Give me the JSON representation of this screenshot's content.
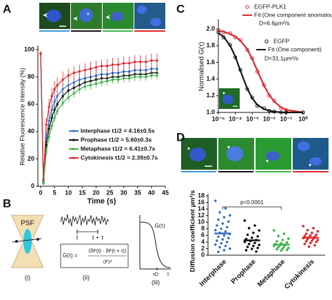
{
  "chart_data": [
    {
      "type": "line",
      "label": "A",
      "xlabel": "Time (s)",
      "ylabel": "Relative Fluorescence Intensity (%)",
      "x": [
        0,
        1,
        2,
        3,
        4,
        5,
        6,
        8,
        10,
        12,
        14,
        16,
        18,
        20,
        22,
        24,
        26,
        28,
        30,
        32,
        34,
        36,
        38,
        40,
        42
      ],
      "xlim": [
        -1,
        45
      ],
      "xticks": [
        0,
        5,
        10,
        15,
        20,
        25,
        30,
        35,
        40,
        45
      ],
      "ylim": [
        0,
        102
      ],
      "yticks": [
        0,
        20,
        40,
        60,
        80,
        100
      ],
      "legend": "lower right",
      "series": [
        {
          "name": "Interphase   t1/2 = 4.16±0.5s",
          "color": "#3a6fc4",
          "values": [
            97,
            4,
            35,
            48,
            56,
            62,
            66,
            71,
            74,
            76,
            78,
            79,
            80,
            81,
            82,
            82,
            83,
            83,
            84,
            84,
            85,
            85,
            85,
            86,
            86
          ],
          "errors": [
            2,
            1,
            4,
            4,
            4,
            4,
            4,
            4,
            4,
            4,
            4,
            4,
            4,
            4,
            4,
            4,
            4,
            4,
            4,
            4,
            4,
            4,
            4,
            4,
            4
          ]
        },
        {
          "name": "Prophase   t1/2 = 5.60±0.3s",
          "color": "#111111",
          "values": [
            97,
            3,
            30,
            42,
            50,
            56,
            60,
            66,
            70,
            72,
            74,
            76,
            77,
            78,
            79,
            79,
            80,
            80,
            81,
            81,
            82,
            82,
            82,
            83,
            83
          ],
          "errors": [
            2,
            1,
            3,
            3,
            3,
            3,
            3,
            3,
            3,
            3,
            3,
            3,
            3,
            3,
            3,
            3,
            3,
            3,
            3,
            3,
            3,
            3,
            3,
            3,
            3
          ]
        },
        {
          "name": "Metaphase  t1/2 = 6.41±0.7s",
          "color": "#3cb34a",
          "values": [
            97,
            2,
            25,
            36,
            44,
            50,
            55,
            61,
            65,
            68,
            71,
            73,
            74,
            75,
            76,
            77,
            78,
            78,
            79,
            79,
            80,
            80,
            80,
            81,
            81
          ],
          "errors": [
            2,
            1,
            3,
            3,
            3,
            3,
            3,
            3,
            3,
            3,
            3,
            3,
            3,
            3,
            3,
            3,
            3,
            3,
            3,
            3,
            3,
            3,
            3,
            3,
            3
          ]
        },
        {
          "name": "Cytokinesis t1/2 = 2.39±0.7s",
          "color": "#e0242b",
          "values": [
            97,
            5,
            45,
            58,
            66,
            71,
            74,
            78,
            81,
            83,
            84,
            85,
            86,
            87,
            88,
            88,
            89,
            89,
            90,
            90,
            91,
            91,
            91,
            92,
            92
          ],
          "errors": [
            2,
            1,
            5,
            6,
            6,
            6,
            6,
            6,
            5,
            5,
            5,
            5,
            5,
            5,
            5,
            5,
            5,
            5,
            5,
            5,
            5,
            5,
            5,
            5,
            5
          ]
        }
      ]
    },
    {
      "type": "line",
      "label": "C",
      "ylabel": "Normalised G(τ)",
      "xscale": "log",
      "x": [
        1e-05,
        2e-05,
        5e-05,
        0.0001,
        0.0002,
        0.0005,
        0.001,
        0.002,
        0.005,
        0.01,
        0.02,
        0.05,
        0.1,
        1
      ],
      "xlim": [
        1e-05,
        1
      ],
      "xticks": [
        {
          "value": 1e-05,
          "label": "10⁻⁵"
        },
        {
          "value": 0.0001,
          "label": "10⁻⁴"
        },
        {
          "value": 0.001,
          "label": "10⁻³"
        },
        {
          "value": 0.01,
          "label": "10⁻²"
        },
        {
          "value": 0.1,
          "label": "10⁻¹"
        },
        {
          "value": 1,
          "label": "10⁰"
        }
      ],
      "ylim": [
        1,
        2.1
      ],
      "yticks": [
        {
          "value": 1,
          "label": "1.0"
        },
        1.2,
        1.4,
        1.6,
        1.8,
        {
          "value": 2,
          "label": "2.0"
        }
      ],
      "legend": "upper right",
      "annotations": [
        "D=6.6µm²/s",
        "D=31.1µm²/s"
      ],
      "series": [
        {
          "name": "EGFP-PLK1",
          "color": "#e0242b",
          "mode": "markers",
          "values": [
            1.99,
            1.96,
            1.95,
            1.9,
            1.87,
            1.75,
            1.65,
            1.49,
            1.33,
            1.2,
            1.14,
            1.05,
            1.03,
            1.0
          ]
        },
        {
          "name": "Fit (One component anomalous)",
          "color": "#e0242b",
          "mode": "line",
          "values": [
            1.98,
            1.97,
            1.94,
            1.91,
            1.86,
            1.76,
            1.64,
            1.5,
            1.32,
            1.21,
            1.13,
            1.06,
            1.03,
            1.0
          ]
        },
        {
          "name": "EGFP",
          "color": "#111111",
          "mode": "markers",
          "values": [
            1.96,
            1.9,
            1.81,
            1.66,
            1.51,
            1.28,
            1.18,
            1.08,
            1.05,
            1.02,
            1.01,
            1.0,
            1.0,
            1.0
          ]
        },
        {
          "name": "Fit (One component)",
          "color": "#111111",
          "mode": "line",
          "values": [
            1.95,
            1.91,
            1.8,
            1.67,
            1.5,
            1.29,
            1.17,
            1.09,
            1.04,
            1.02,
            1.01,
            1.0,
            1.0,
            1.0
          ]
        }
      ]
    },
    {
      "type": "strip",
      "label": "D",
      "ylabel": "Diffusion coefficient µm²/s",
      "annotation": "p<0.0001",
      "categories": [
        "Interphase",
        "Prophase",
        "Metaphase",
        "Cytokinesis"
      ],
      "colors": [
        "#3a6fc4",
        "#111111",
        "#3cb34a",
        "#e0242b"
      ],
      "ylim": [
        0,
        18
      ],
      "yticks": [
        0,
        2,
        4,
        6,
        8,
        10,
        12,
        14,
        16,
        18
      ],
      "points": [
        [
          16.5,
          14.2,
          13.0,
          12.1,
          11.5,
          10.8,
          10.2,
          9.6,
          9.0,
          8.5,
          8.0,
          7.6,
          7.2,
          6.8,
          6.4,
          6.0,
          5.6,
          5.2,
          4.8,
          4.4,
          4.0,
          3.6,
          3.2,
          2.8,
          2.4,
          2.0,
          1.5,
          1.0
        ],
        [
          10.5,
          9.0,
          8.2,
          7.5,
          6.8,
          6.2,
          5.7,
          5.3,
          4.9,
          4.6,
          4.3,
          4.0,
          3.7,
          3.4,
          3.1,
          2.8,
          2.5,
          2.2,
          1.9,
          1.5,
          1.1
        ],
        [
          7.5,
          6.5,
          5.8,
          5.0,
          4.6,
          4.2,
          3.9,
          3.6,
          3.4,
          3.2,
          3.0,
          2.8,
          2.6,
          2.4,
          2.2,
          2.0,
          1.8,
          1.6,
          1.4
        ],
        [
          8.8,
          8.2,
          7.6,
          7.2,
          6.8,
          6.5,
          6.2,
          6.0,
          5.8,
          5.6,
          5.4,
          5.2,
          5.0,
          4.8,
          4.6,
          4.4,
          4.2,
          4.0,
          3.7,
          3.4,
          3.0,
          2.6
        ]
      ],
      "means": [
        6.6,
        4.5,
        3.2,
        5.3
      ]
    }
  ],
  "diagram_b": {
    "label": "B",
    "psf": "PSF",
    "steps": [
      "(i)",
      "(ii)",
      "(iii)"
    ],
    "trace_marks": [
      "t",
      "t + τ"
    ],
    "formula": {
      "lhs": "G(τ) =",
      "numerator": "⟨δF(t) · δF(t + τ)⟩",
      "denominator": "⟨F⟩²"
    },
    "plot": {
      "ylabel": "G(τ)",
      "xmark": "τD",
      "xlabel": "τ"
    }
  }
}
